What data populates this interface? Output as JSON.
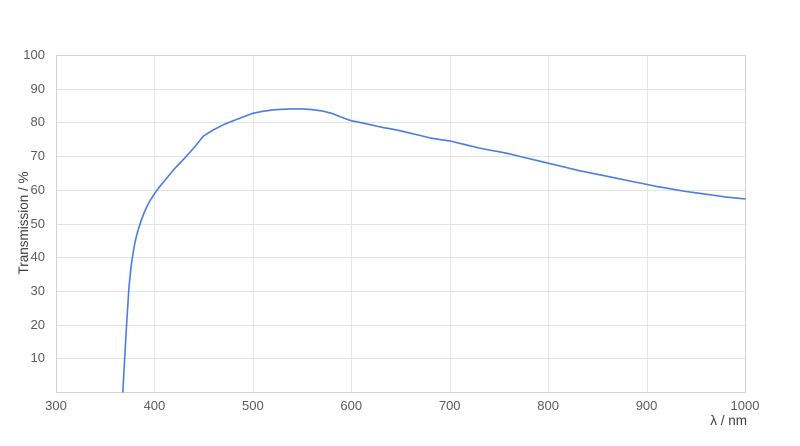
{
  "chart_data": {
    "type": "line",
    "title": "",
    "xlabel": "λ / nm",
    "ylabel": "Transmission / %",
    "xlim": [
      300,
      1000
    ],
    "ylim": [
      0,
      100
    ],
    "x_ticks": [
      "300",
      "400",
      "500",
      "600",
      "700",
      "800",
      "900",
      "1000"
    ],
    "x_tick_values": [
      300,
      400,
      500,
      600,
      700,
      800,
      900,
      1000
    ],
    "y_ticks": [
      "10",
      "20",
      "30",
      "40",
      "50",
      "60",
      "70",
      "80",
      "90",
      "100"
    ],
    "y_tick_values": [
      10,
      20,
      30,
      40,
      50,
      60,
      70,
      80,
      90,
      100
    ],
    "grid": true,
    "legend_position": "none",
    "colors": {
      "line": "#4a7de4",
      "gridline": "#e4e4e4",
      "plot_border": "#d2d2d2",
      "tick_label": "#5b5b5b",
      "axis_title": "#3d3d3d",
      "background": "#ffffff"
    },
    "series": [
      {
        "name": "transmission",
        "points": [
          [
            368,
            0
          ],
          [
            369,
            6
          ],
          [
            370,
            11
          ],
          [
            371,
            16.5
          ],
          [
            372,
            21.5
          ],
          [
            373,
            26
          ],
          [
            374,
            30.5
          ],
          [
            375,
            33.5
          ],
          [
            376,
            36.5
          ],
          [
            377,
            38.7
          ],
          [
            378,
            40.7
          ],
          [
            380,
            44
          ],
          [
            382,
            46.6
          ],
          [
            384,
            48.6
          ],
          [
            386,
            50.4
          ],
          [
            388,
            52
          ],
          [
            390,
            53.5
          ],
          [
            392,
            54.8
          ],
          [
            394,
            56
          ],
          [
            396,
            57
          ],
          [
            398,
            57.9
          ],
          [
            400,
            58.8
          ],
          [
            405,
            60.8
          ],
          [
            410,
            62.6
          ],
          [
            420,
            66.1
          ],
          [
            430,
            69.2
          ],
          [
            440,
            72.4
          ],
          [
            450,
            76
          ],
          [
            460,
            77.8
          ],
          [
            470,
            79.3
          ],
          [
            480,
            80.5
          ],
          [
            490,
            81.6
          ],
          [
            500,
            82.7
          ],
          [
            510,
            83.3
          ],
          [
            520,
            83.7
          ],
          [
            530,
            83.9
          ],
          [
            540,
            84
          ],
          [
            550,
            84
          ],
          [
            560,
            83.8
          ],
          [
            570,
            83.4
          ],
          [
            580,
            82.7
          ],
          [
            590,
            81.5
          ],
          [
            600,
            80.5
          ],
          [
            610,
            79.9
          ],
          [
            620,
            79.3
          ],
          [
            630,
            78.6
          ],
          [
            640,
            78.1
          ],
          [
            650,
            77.5
          ],
          [
            660,
            76.8
          ],
          [
            670,
            76.1
          ],
          [
            680,
            75.4
          ],
          [
            690,
            74.9
          ],
          [
            700,
            74.5
          ],
          [
            710,
            73.8
          ],
          [
            720,
            73.1
          ],
          [
            730,
            72.4
          ],
          [
            740,
            71.8
          ],
          [
            750,
            71.3
          ],
          [
            760,
            70.7
          ],
          [
            770,
            70
          ],
          [
            780,
            69.3
          ],
          [
            790,
            68.6
          ],
          [
            800,
            67.9
          ],
          [
            810,
            67.2
          ],
          [
            820,
            66.5
          ],
          [
            830,
            65.8
          ],
          [
            840,
            65.2
          ],
          [
            850,
            64.6
          ],
          [
            860,
            64
          ],
          [
            870,
            63.4
          ],
          [
            880,
            62.8
          ],
          [
            890,
            62.2
          ],
          [
            900,
            61.6
          ],
          [
            910,
            61
          ],
          [
            920,
            60.5
          ],
          [
            930,
            60
          ],
          [
            940,
            59.5
          ],
          [
            950,
            59.1
          ],
          [
            960,
            58.7
          ],
          [
            970,
            58.3
          ],
          [
            980,
            57.9
          ],
          [
            990,
            57.6
          ],
          [
            1000,
            57.3
          ]
        ]
      }
    ]
  }
}
